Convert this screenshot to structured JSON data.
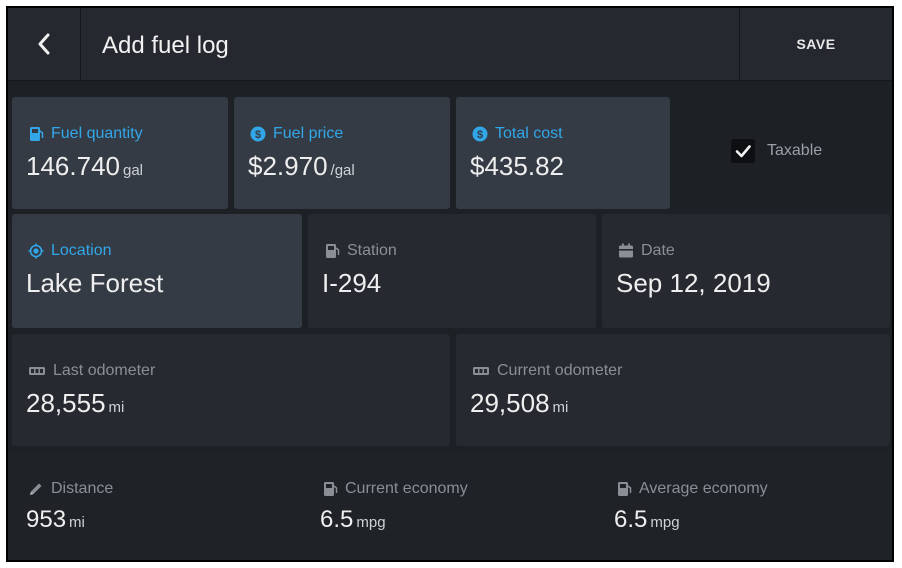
{
  "header": {
    "title": "Add fuel log",
    "save_label": "SAVE"
  },
  "fuel": {
    "quantity": {
      "label": "Fuel quantity",
      "value": "146.740",
      "unit": "gal",
      "icon": "fuel-pump-icon"
    },
    "price": {
      "label": "Fuel price",
      "value": "$2.970",
      "unit": "/gal",
      "icon": "dollar-icon"
    },
    "total": {
      "label": "Total cost",
      "value": "$435.82",
      "icon": "dollar-icon"
    }
  },
  "taxable": {
    "label": "Taxable",
    "checked": true
  },
  "location": {
    "label": "Location",
    "value": "Lake Forest",
    "icon": "location-target-icon"
  },
  "station": {
    "label": "Station",
    "value": "I-294",
    "icon": "fuel-pump-icon"
  },
  "date": {
    "label": "Date",
    "value": "Sep 12, 2019",
    "icon": "calendar-icon"
  },
  "odometer": {
    "last": {
      "label": "Last odometer",
      "value": "28,555",
      "unit": "mi",
      "icon": "odometer-icon"
    },
    "current": {
      "label": "Current odometer",
      "value": "29,508",
      "unit": "mi",
      "icon": "odometer-icon"
    }
  },
  "stats": {
    "distance": {
      "label": "Distance",
      "value": "953",
      "unit": "mi",
      "icon": "pencil-icon"
    },
    "current_economy": {
      "label": "Current economy",
      "value": "6.5",
      "unit": "mpg",
      "icon": "fuel-pump-icon"
    },
    "average_economy": {
      "label": "Average economy",
      "value": "6.5",
      "unit": "mpg",
      "icon": "fuel-pump-icon"
    }
  },
  "colors": {
    "accent": "#31a7ea",
    "background": "#1d2025",
    "card_highlight": "#353b44",
    "card_dark": "#262a30"
  }
}
